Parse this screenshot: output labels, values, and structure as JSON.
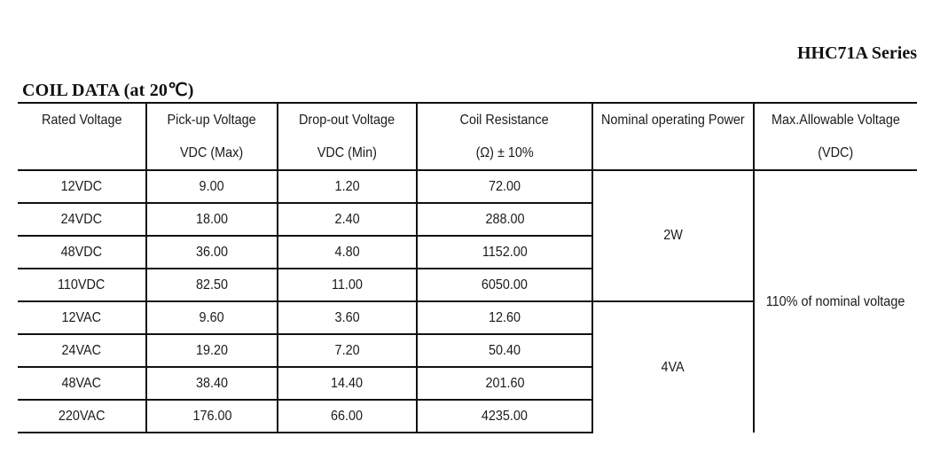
{
  "document": {
    "series_title": "HHC71A Series",
    "section_title": "COIL DATA (at 20℃)"
  },
  "table": {
    "headers": [
      {
        "line1": "Rated Voltage",
        "line2": ""
      },
      {
        "line1": "Pick-up Voltage",
        "line2": "VDC (Max)"
      },
      {
        "line1": "Drop-out Voltage",
        "line2": "VDC (Min)"
      },
      {
        "line1": "Coil Resistance",
        "line2": "(Ω)  ± 10%"
      },
      {
        "line1": "Nominal operating Power",
        "line2": ""
      },
      {
        "line1": "Max.Allowable Voltage",
        "line2": "(VDC)"
      }
    ],
    "rows": [
      {
        "rated": "12VDC",
        "pickup": "9.00",
        "dropout": "1.20",
        "resistance": "72.00"
      },
      {
        "rated": "24VDC",
        "pickup": "18.00",
        "dropout": "2.40",
        "resistance": "288.00"
      },
      {
        "rated": "48VDC",
        "pickup": "36.00",
        "dropout": "4.80",
        "resistance": "1152.00"
      },
      {
        "rated": "110VDC",
        "pickup": "82.50",
        "dropout": "11.00",
        "resistance": "6050.00"
      },
      {
        "rated": "12VAC",
        "pickup": "9.60",
        "dropout": "3.60",
        "resistance": "12.60"
      },
      {
        "rated": "24VAC",
        "pickup": "19.20",
        "dropout": "7.20",
        "resistance": "50.40"
      },
      {
        "rated": "48VAC",
        "pickup": "38.40",
        "dropout": "14.40",
        "resistance": "201.60"
      },
      {
        "rated": "220VAC",
        "pickup": "176.00",
        "dropout": "66.00",
        "resistance": "4235.00"
      }
    ],
    "power_groups": {
      "dc": "2W",
      "ac": "4VA"
    },
    "max_allowable": "110% of nominal voltage"
  }
}
